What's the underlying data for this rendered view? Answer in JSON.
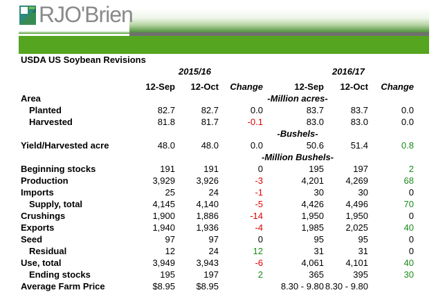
{
  "logo": {
    "text": "RJO'Brien",
    "brand_color": "#55a520"
  },
  "title": "USDA US Soybean Revisions",
  "years": [
    "2015/16",
    "2016/17"
  ],
  "columns": [
    "12-Sep",
    "12-Oct",
    "Change",
    "12-Sep",
    "12-Oct",
    "Change"
  ],
  "rows": [
    {
      "type": "unit-row",
      "label": "Area",
      "unit": "-Million acres-"
    },
    {
      "label": "Planted",
      "indent": true,
      "values": [
        "82.7",
        "82.7",
        "0.0",
        "83.7",
        "83.7",
        "0.0"
      ],
      "signs": [
        "",
        "",
        "",
        "",
        "",
        ""
      ]
    },
    {
      "label": "Harvested",
      "indent": true,
      "values": [
        "81.8",
        "81.7",
        "-0.1",
        "83.0",
        "83.0",
        "0.0"
      ],
      "signs": [
        "",
        "",
        "neg",
        "",
        "",
        ""
      ]
    },
    {
      "type": "unit-row",
      "label": "",
      "unit": "-Bushels-"
    },
    {
      "label": "Yield/Harvested acre",
      "values": [
        "48.0",
        "48.0",
        "0.0",
        "50.6",
        "51.4",
        "0.8"
      ],
      "signs": [
        "",
        "",
        "",
        "",
        "",
        "pos"
      ]
    },
    {
      "type": "unit-row",
      "label": "",
      "unit": "-Million Bushels-"
    },
    {
      "label": "Beginning stocks",
      "values": [
        "191",
        "191",
        "0",
        "195",
        "197",
        "2"
      ],
      "signs": [
        "",
        "",
        "",
        "",
        "",
        "pos"
      ]
    },
    {
      "label": "Production",
      "values": [
        "3,929",
        "3,926",
        "-3",
        "4,201",
        "4,269",
        "68"
      ],
      "signs": [
        "",
        "",
        "neg",
        "",
        "",
        "pos"
      ]
    },
    {
      "label": "Imports",
      "values": [
        "25",
        "24",
        "-1",
        "30",
        "30",
        "0"
      ],
      "signs": [
        "",
        "",
        "neg",
        "",
        "",
        ""
      ]
    },
    {
      "label": "Supply, total",
      "indent": true,
      "values": [
        "4,145",
        "4,140",
        "-5",
        "4,426",
        "4,496",
        "70"
      ],
      "signs": [
        "",
        "",
        "neg",
        "",
        "",
        "pos"
      ]
    },
    {
      "label": "Crushings",
      "values": [
        "1,900",
        "1,886",
        "-14",
        "1,950",
        "1,950",
        "0"
      ],
      "signs": [
        "",
        "",
        "neg",
        "",
        "",
        ""
      ]
    },
    {
      "label": "Exports",
      "values": [
        "1,940",
        "1,936",
        "-4",
        "1,985",
        "2,025",
        "40"
      ],
      "signs": [
        "",
        "",
        "neg",
        "",
        "",
        "pos"
      ]
    },
    {
      "label": "Seed",
      "values": [
        "97",
        "97",
        "0",
        "95",
        "95",
        "0"
      ],
      "signs": [
        "",
        "",
        "",
        "",
        "",
        ""
      ]
    },
    {
      "label": "Residual",
      "indent": true,
      "values": [
        "12",
        "24",
        "12",
        "31",
        "31",
        "0"
      ],
      "signs": [
        "",
        "",
        "pos",
        "",
        "",
        ""
      ]
    },
    {
      "label": "Use, total",
      "values": [
        "3,949",
        "3,943",
        "-6",
        "4,061",
        "4,101",
        "40"
      ],
      "signs": [
        "",
        "",
        "neg",
        "",
        "",
        "pos"
      ]
    },
    {
      "label": "Ending stocks",
      "indent": true,
      "values": [
        "195",
        "197",
        "2",
        "365",
        "395",
        "30"
      ],
      "signs": [
        "",
        "",
        "pos",
        "",
        "",
        "pos"
      ]
    },
    {
      "label": "Average Farm Price",
      "values": [
        "$8.95",
        "$8.95",
        "",
        "8.30 - 9.80",
        "8.30 - 9.80",
        ""
      ],
      "signs": [
        "",
        "",
        "",
        "",
        "",
        ""
      ]
    }
  ]
}
